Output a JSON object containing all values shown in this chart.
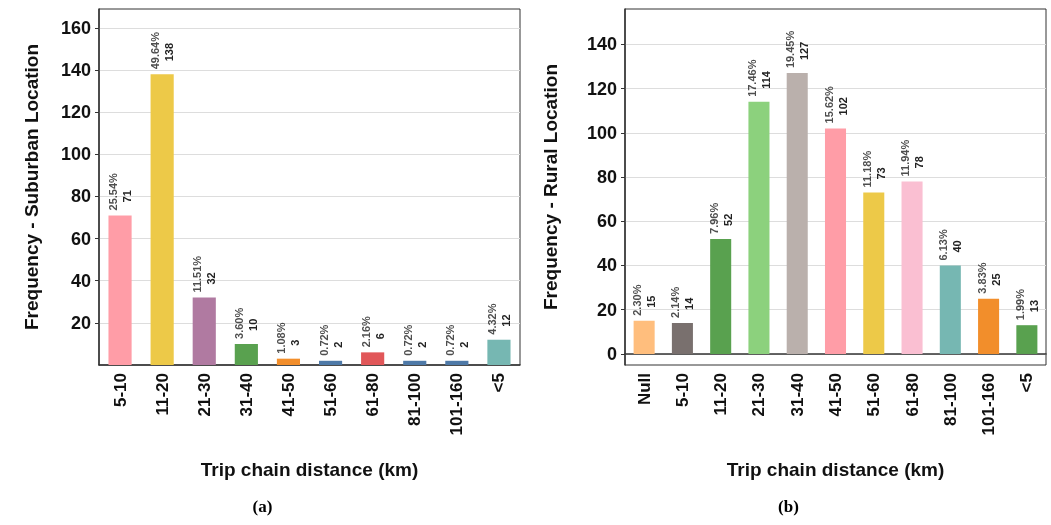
{
  "chart_data": [
    {
      "type": "bar",
      "xlabel": "Trip chain distance (km)",
      "ylabel": "Frequency - Suburban Location",
      "categories": [
        "5-10",
        "11-20",
        "21-30",
        "31-40",
        "41-50",
        "51-60",
        "61-80",
        "81-100",
        "101-160",
        "<5"
      ],
      "values": [
        71,
        138,
        32,
        10,
        3,
        2,
        6,
        2,
        2,
        12
      ],
      "colors": [
        "#ff9da7",
        "#edc948",
        "#b07aa1",
        "#59a14f",
        "#f28e2b",
        "#4e79a7",
        "#e15759",
        "#4e79a7",
        "#4e79a7",
        "#76b7b2"
      ],
      "data_labels": true,
      "ylim": [
        0,
        169
      ],
      "yticks": [
        20,
        40,
        60,
        80,
        100,
        120,
        140,
        160
      ],
      "grid": "y",
      "annotations": [
        {
          "text": "25.54%",
          "x": "5-10",
          "y": 71
        },
        {
          "text": "49.64%",
          "x": "11-20",
          "y": 138
        },
        {
          "text": "11.51%",
          "x": "21-30",
          "y": 32
        },
        {
          "text": "3.60%",
          "x": "31-40",
          "y": 10
        },
        {
          "text": "1.08%",
          "x": "41-50",
          "y": 3
        },
        {
          "text": "0.72%",
          "x": "51-60",
          "y": 2
        },
        {
          "text": "2.16%",
          "x": "61-80",
          "y": 6
        },
        {
          "text": "0.72%",
          "x": "81-100",
          "y": 2
        },
        {
          "text": "0.72%",
          "x": "101-160",
          "y": 2
        },
        {
          "text": "4.32%",
          "x": "<5",
          "y": 12
        },
        "(a)"
      ]
    },
    {
      "type": "bar",
      "xlabel": "Trip chain distance (km)",
      "ylabel": "Frequency - Rural Location",
      "categories": [
        "Null",
        "5-10",
        "11-20",
        "21-30",
        "31-40",
        "41-50",
        "51-60",
        "61-80",
        "81-100",
        "101-160",
        "<5"
      ],
      "values": [
        15,
        14,
        52,
        114,
        127,
        102,
        73,
        78,
        40,
        25,
        13
      ],
      "colors": [
        "#ffbe7d",
        "#79706e",
        "#59a14f",
        "#8cd17d",
        "#bab0ac",
        "#ff9da7",
        "#edc948",
        "#fabfd2",
        "#76b7b2",
        "#f28e2b",
        "#59a14f"
      ],
      "data_labels": true,
      "ylim": [
        -5,
        156
      ],
      "yticks": [
        0,
        20,
        40,
        60,
        80,
        100,
        120,
        140
      ],
      "grid": "y",
      "annotations": [
        {
          "text": "2.30%",
          "x": "Null",
          "y": 15
        },
        {
          "text": "2.14%",
          "x": "5-10",
          "y": 14
        },
        {
          "text": "7.96%",
          "x": "11-20",
          "y": 52
        },
        {
          "text": "17.46%",
          "x": "21-30",
          "y": 114
        },
        {
          "text": "19.45%",
          "x": "31-40",
          "y": 127
        },
        {
          "text": "15.62%",
          "x": "41-50",
          "y": 102
        },
        {
          "text": "11.18%",
          "x": "51-60",
          "y": 73
        },
        {
          "text": "11.94%",
          "x": "61-80",
          "y": 78
        },
        {
          "text": "6.13%",
          "x": "81-100",
          "y": 40
        },
        {
          "text": "3.83%",
          "x": "101-160",
          "y": 25
        },
        {
          "text": "1.99%",
          "x": "<5",
          "y": 13
        },
        "(b)"
      ]
    }
  ]
}
